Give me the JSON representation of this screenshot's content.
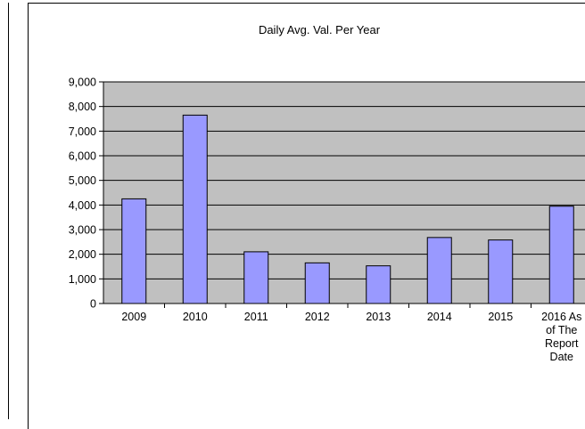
{
  "chart_data": {
    "type": "bar",
    "title": "Daily Avg. Val. Per Year",
    "xlabel": "",
    "ylabel": "",
    "categories": [
      "2009",
      "2010",
      "2011",
      "2012",
      "2013",
      "2014",
      "2015",
      "2016 As of The Report Date"
    ],
    "category_lines": [
      [
        "2009"
      ],
      [
        "2010"
      ],
      [
        "2011"
      ],
      [
        "2012"
      ],
      [
        "2013"
      ],
      [
        "2014"
      ],
      [
        "2015"
      ],
      [
        "2016 As",
        "of The",
        "Report",
        "Date"
      ]
    ],
    "values": [
      4250,
      7650,
      2100,
      1650,
      1530,
      2680,
      2580,
      3950
    ],
    "ylim": [
      0,
      9000
    ],
    "yticks": [
      "0",
      "1,000",
      "2,000",
      "3,000",
      "4,000",
      "5,000",
      "6,000",
      "7,000",
      "8,000",
      "9,000"
    ],
    "grid": true,
    "legend": "none",
    "colors": {
      "bar_fill": "#9999ff",
      "plot_bg": "#c0c0c0",
      "bar_stroke": "#000000"
    }
  }
}
